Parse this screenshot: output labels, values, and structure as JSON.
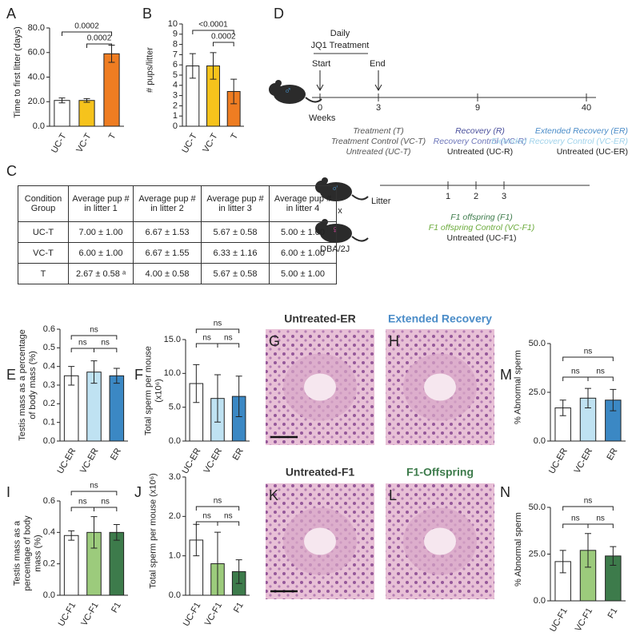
{
  "chart_data": [
    {
      "type": "bar",
      "panel": "A",
      "ylabel": "Time to first litter (days)",
      "categories": [
        "UC-T",
        "VC-T",
        "T"
      ],
      "values": [
        21,
        21,
        59
      ],
      "errors": [
        2,
        1.5,
        7
      ],
      "colors": [
        "#ffffff",
        "#f6c31c",
        "#ef7d22"
      ],
      "ylim": [
        0,
        80
      ],
      "yticks": [
        {
          "value": 0,
          "label": "0.0"
        },
        {
          "value": 20,
          "label": "20.0"
        },
        {
          "value": 40,
          "label": "40.0"
        },
        {
          "value": 60,
          "label": "60.0"
        },
        {
          "value": 80,
          "label": "80.0"
        }
      ],
      "annotations": [
        "0.0002",
        "0.0002"
      ]
    },
    {
      "type": "bar",
      "panel": "B",
      "ylabel": "# pups/litter",
      "categories": [
        "UC-T",
        "VC-T",
        "T"
      ],
      "values": [
        5.9,
        5.9,
        3.4
      ],
      "errors": [
        1.2,
        1.3,
        1.2
      ],
      "colors": [
        "#ffffff",
        "#f6c31c",
        "#ef7d22"
      ],
      "ylim": [
        0,
        10
      ],
      "yticks": [
        0,
        1,
        2,
        3,
        4,
        5,
        6,
        7,
        8,
        9,
        10
      ],
      "annotations": [
        "<0.0001",
        "0.0002"
      ]
    },
    {
      "type": "bar",
      "panel": "E",
      "ylabel": "Testis mass as a percentage of body mass (%)",
      "categories": [
        "UC-ER",
        "VC-ER",
        "ER"
      ],
      "values": [
        0.35,
        0.37,
        0.35
      ],
      "errors": [
        0.05,
        0.06,
        0.04
      ],
      "colors": [
        "#ffffff",
        "#bfe2f2",
        "#3b88c4"
      ],
      "ylim": [
        0,
        0.6
      ],
      "yticks": [
        {
          "value": 0,
          "label": "0.0"
        },
        0.1,
        0.2,
        0.3,
        0.4,
        0.5,
        0.6
      ],
      "annotations": [
        "ns",
        "ns",
        "ns"
      ]
    },
    {
      "type": "bar",
      "panel": "F",
      "ylabel": "Total sperm per mouse (x10⁶)",
      "categories": [
        "UC-ER",
        "VC-ER",
        "ER"
      ],
      "values": [
        8.5,
        6.3,
        6.6
      ],
      "errors": [
        2.8,
        3.5,
        3
      ],
      "colors": [
        "#ffffff",
        "#bfe2f2",
        "#3b88c4"
      ],
      "ylim": [
        0,
        15
      ],
      "yticks": [
        {
          "value": 0,
          "label": "0.0"
        },
        {
          "value": 5,
          "label": "5.0"
        },
        {
          "value": 10,
          "label": "10.0"
        },
        {
          "value": 15,
          "label": "15.0"
        }
      ],
      "annotations": [
        "ns",
        "ns",
        "ns"
      ]
    },
    {
      "type": "bar",
      "panel": "M",
      "ylabel": "% Abnormal sperm",
      "categories": [
        "UC-ER",
        "VC-ER",
        "ER"
      ],
      "values": [
        17,
        22,
        21
      ],
      "errors": [
        4,
        5,
        5.5
      ],
      "colors": [
        "#ffffff",
        "#bfe2f2",
        "#3b88c4"
      ],
      "ylim": [
        0,
        50
      ],
      "yticks": [
        {
          "value": 0,
          "label": "0.0"
        },
        {
          "value": 25,
          "label": "25.0"
        },
        {
          "value": 50,
          "label": "50.0"
        }
      ],
      "annotations": [
        "ns",
        "ns",
        "ns"
      ]
    },
    {
      "type": "bar",
      "panel": "I",
      "ylabel": "Testis mass as a percentage of body mass (%)",
      "categories": [
        "UC-F1",
        "VC-F1",
        "F1"
      ],
      "values": [
        0.38,
        0.4,
        0.4
      ],
      "errors": [
        0.03,
        0.1,
        0.05
      ],
      "colors": [
        "#ffffff",
        "#9ccb7c",
        "#3d7b4b"
      ],
      "ylim": [
        0,
        0.6
      ],
      "yticks": [
        {
          "value": 0,
          "label": "0.0"
        },
        0.2,
        0.4,
        0.6
      ],
      "annotations": [
        "ns",
        "ns",
        "ns"
      ]
    },
    {
      "type": "bar",
      "panel": "J",
      "ylabel": "Total sperm per mouse (x10⁶)",
      "categories": [
        "UC-F1",
        "VC-F1",
        "F1"
      ],
      "values": [
        1.4,
        0.8,
        0.6
      ],
      "errors": [
        0.4,
        0.8,
        0.3
      ],
      "colors": [
        "#ffffff",
        "#9ccb7c",
        "#3d7b4b"
      ],
      "ylim": [
        0,
        3
      ],
      "yticks": [
        {
          "value": 0,
          "label": "0.0"
        },
        {
          "value": 1,
          "label": "1.0"
        },
        {
          "value": 2,
          "label": "2.0"
        },
        {
          "value": 3,
          "label": "3.0"
        }
      ],
      "annotations": [
        "ns",
        "ns",
        "ns"
      ]
    },
    {
      "type": "bar",
      "panel": "N",
      "ylabel": "% Abnormal sperm",
      "categories": [
        "UC-F1",
        "VC-F1",
        "F1"
      ],
      "values": [
        21,
        27,
        24
      ],
      "errors": [
        6,
        9,
        5
      ],
      "colors": [
        "#ffffff",
        "#9ccb7c",
        "#3d7b4b"
      ],
      "ylim": [
        0,
        50
      ],
      "yticks": [
        {
          "value": 0,
          "label": "0.0"
        },
        {
          "value": 25,
          "label": "25.0"
        },
        {
          "value": 50,
          "label": "50.0"
        }
      ],
      "annotations": [
        "ns",
        "ns",
        "ns"
      ]
    }
  ],
  "table": {
    "panel": "C",
    "header": [
      "Condition Group",
      "Average pup # in litter 1",
      "Average pup # in litter 2",
      "Average pup # in litter 3",
      "Average pup # in litter 4"
    ],
    "rows": [
      [
        "UC-T",
        "7.00 ± 1.00",
        "6.67 ± 1.53",
        "5.67 ± 0.58",
        "5.00 ± 1.00"
      ],
      [
        "VC-T",
        "6.00 ± 1.00",
        "6.67 ± 1.55",
        "6.33 ± 1.16",
        "6.00 ± 1.00"
      ],
      [
        "T",
        "2.67 ± 0.58 ᵃ",
        "4.00 ± 0.58",
        "5.67 ± 0.58",
        "5.00 ± 1.00"
      ]
    ]
  },
  "diagram": {
    "panel": "D",
    "male_symbol": "♂",
    "female_symbol": "♀",
    "treatment_label": [
      "Daily",
      "JQ1 Treatment"
    ],
    "start": "Start",
    "end": "End",
    "timeline_ticks": [
      0,
      3,
      9,
      40
    ],
    "time_unit": "Weeks",
    "groups": [
      {
        "lines": [
          "Treatment (T)",
          "Treatment Control (VC-T)",
          "Untreated (UC-T)"
        ],
        "colors": [
          "#555555",
          "#555555",
          "#555555"
        ]
      },
      {
        "lines": [
          "Recovery (R)",
          "Recovery Control (VC-R)",
          "Untreated (UC-R)"
        ],
        "colors": [
          "#4a4f9c",
          "#6b74b8",
          "#222222"
        ]
      },
      {
        "lines": [
          "Extended Recovery (ER)",
          "Extended Recovery Control (VC-ER)",
          "Untreated (UC-ER)"
        ],
        "colors": [
          "#4a8cc8",
          "#9fd2ea",
          "#222222"
        ]
      }
    ],
    "cross": {
      "times": "x",
      "strain": "DBA/2J",
      "litter_label": "Litter",
      "litter_ticks": [
        1,
        2,
        3
      ],
      "lines": [
        "F1 offspring (F1)",
        "F1 offspring Control (VC-F1)",
        "Untreated (UC-F1)"
      ],
      "colors": [
        "#3d7b4b",
        "#6aaa3a",
        "#222222"
      ]
    }
  },
  "images": [
    {
      "panel": "G",
      "title": "Untreated-ER",
      "title_color": "#333333"
    },
    {
      "panel": "H",
      "title": "Extended Recovery",
      "title_color": "#4a8cc8"
    },
    {
      "panel": "K",
      "title": "Untreated-F1",
      "title_color": "#333333"
    },
    {
      "panel": "L",
      "title": "F1-Offspring",
      "title_color": "#3d7b4b"
    }
  ]
}
